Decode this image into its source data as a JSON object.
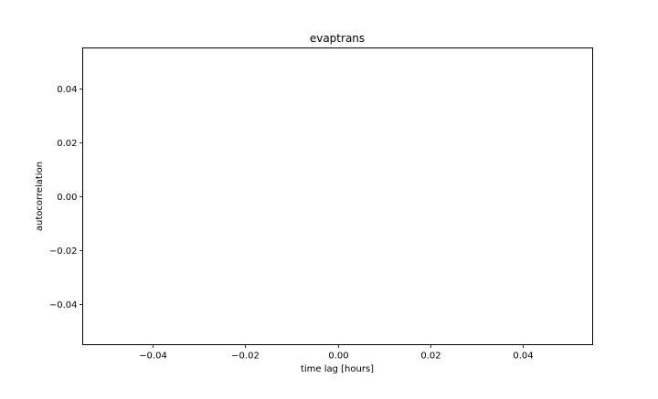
{
  "chart_data": {
    "type": "line",
    "title": "evaptrans",
    "xlabel": "time lag [hours]",
    "ylabel": "autocorrelation",
    "xlim": [
      -0.055,
      0.055
    ],
    "ylim": [
      -0.055,
      0.055
    ],
    "x_ticks": [
      -0.04,
      -0.02,
      0.0,
      0.02,
      0.04
    ],
    "x_tick_labels": [
      "−0.04",
      "−0.02",
      "0.00",
      "0.02",
      "0.04"
    ],
    "y_ticks": [
      0.04,
      0.02,
      0.0,
      -0.02,
      -0.04
    ],
    "y_tick_labels": [
      "0.04",
      "0.02",
      "0.00",
      "−0.02",
      "−0.04"
    ],
    "series": [],
    "grid": false,
    "legend": "none"
  }
}
